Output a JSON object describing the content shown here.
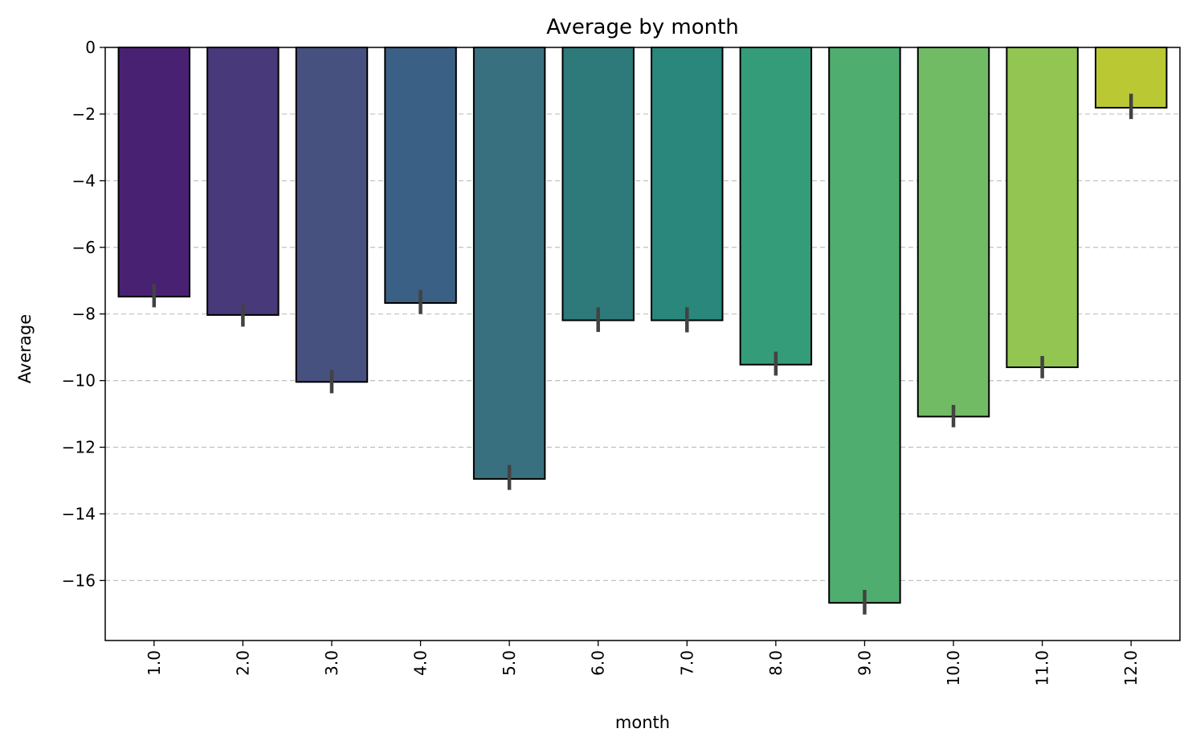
{
  "chart_data": {
    "type": "bar",
    "title": "Average by month",
    "xlabel": "month",
    "ylabel": "Average",
    "categories": [
      "1.0",
      "2.0",
      "3.0",
      "4.0",
      "5.0",
      "6.0",
      "7.0",
      "8.0",
      "9.0",
      "10.0",
      "11.0",
      "12.0"
    ],
    "values": [
      -7.48,
      -8.03,
      -10.04,
      -7.67,
      -12.95,
      -8.19,
      -8.19,
      -9.52,
      -16.67,
      -11.08,
      -9.6,
      -1.81
    ],
    "error_low": [
      -7.8,
      -8.38,
      -10.38,
      -8.0,
      -13.28,
      -8.54,
      -8.55,
      -9.85,
      -17.02,
      -11.4,
      -9.93,
      -2.15
    ],
    "error_high": [
      -7.1,
      -7.66,
      -9.68,
      -7.28,
      -12.53,
      -7.8,
      -7.8,
      -9.13,
      -16.28,
      -10.73,
      -9.26,
      -1.39
    ],
    "bar_colors": [
      "#482173",
      "#48397a",
      "#46517f",
      "#3b6086",
      "#38707f",
      "#2e7979",
      "#2a877b",
      "#359c7a",
      "#4fad70",
      "#71bb65",
      "#93c552",
      "#bac834"
    ],
    "edge_color": "#000000",
    "errorbar_color": "#424242",
    "yticks": [
      0,
      -2,
      -4,
      -6,
      -8,
      -10,
      -12,
      -14,
      -16
    ],
    "ylim": [
      -17.8,
      0
    ],
    "grid": "y-dashed",
    "grid_color": "#c0c0c0",
    "x_tick_rotation": "vertical"
  }
}
